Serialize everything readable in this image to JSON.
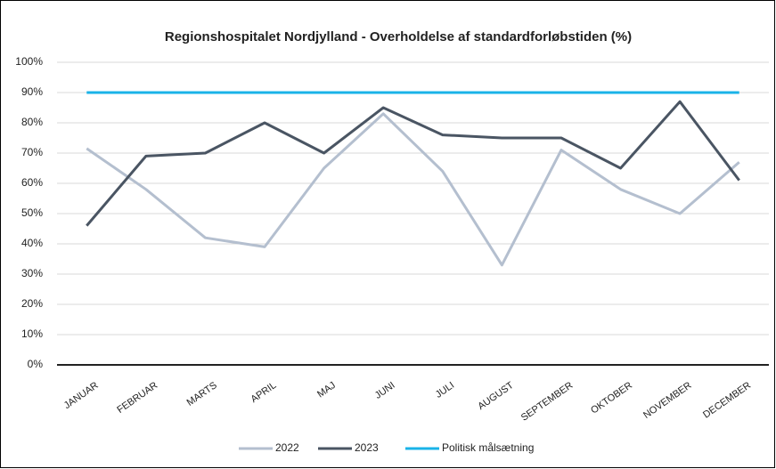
{
  "chart_data": {
    "type": "line",
    "title": "Regionshospitalet Nordjylland - Overholdelse af standardforløbstiden (%)",
    "categories": [
      "JANUAR",
      "FEBRUAR",
      "MARTS",
      "APRIL",
      "MAJ",
      "JUNI",
      "JULI",
      "AUGUST",
      "SEPTEMBER",
      "OKTOBER",
      "NOVEMBER",
      "DECEMBER"
    ],
    "series": [
      {
        "name": "2022",
        "color": "#b4bfcf",
        "values": [
          71.5,
          58,
          42,
          39,
          65,
          83,
          64,
          33,
          71,
          58,
          50,
          67
        ]
      },
      {
        "name": "2023",
        "color": "#4a5563",
        "values": [
          46,
          69,
          70,
          80,
          70,
          85,
          76,
          75,
          75,
          65,
          87,
          61
        ]
      },
      {
        "name": "Politisk målsætning",
        "color": "#1ab3e8",
        "values": [
          90,
          90,
          90,
          90,
          90,
          90,
          90,
          90,
          90,
          90,
          90,
          90
        ]
      }
    ],
    "ylim": [
      0,
      100
    ],
    "yticks": [
      {
        "value": 0,
        "label": "0%"
      },
      {
        "value": 10,
        "label": "10%"
      },
      {
        "value": 20,
        "label": "20%"
      },
      {
        "value": 30,
        "label": "30%"
      },
      {
        "value": 40,
        "label": "40%"
      },
      {
        "value": 50,
        "label": "50%"
      },
      {
        "value": 60,
        "label": "60%"
      },
      {
        "value": 70,
        "label": "70%"
      },
      {
        "value": 80,
        "label": "80%"
      },
      {
        "value": 90,
        "label": "90%"
      },
      {
        "value": 100,
        "label": "100%"
      }
    ],
    "grid": true,
    "legend": "bottom"
  }
}
